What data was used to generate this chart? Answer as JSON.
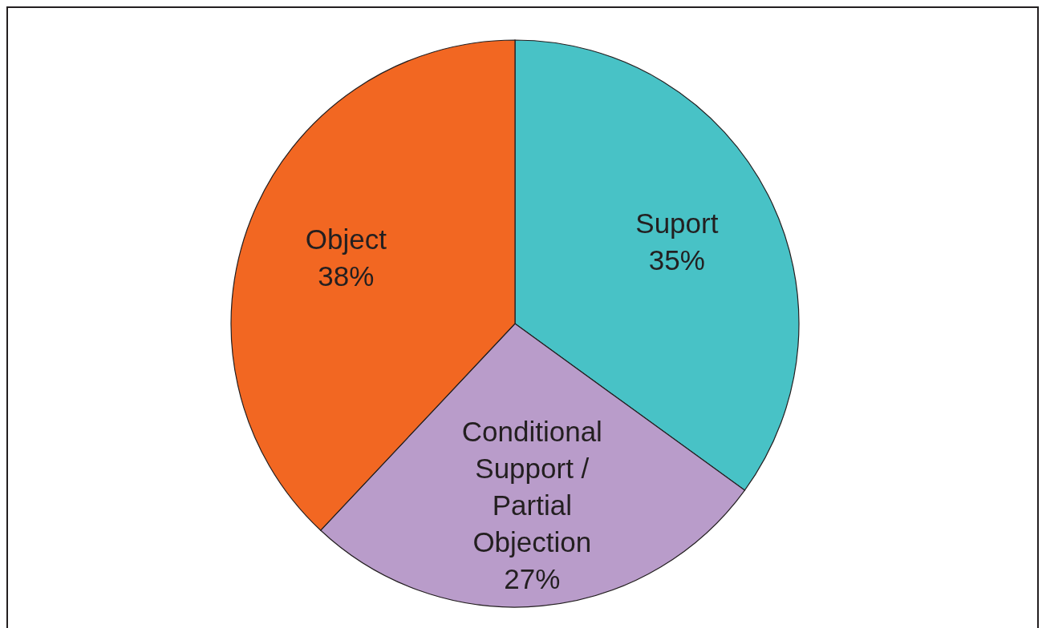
{
  "chart_data": {
    "type": "pie",
    "categories": [
      "Suport",
      "Conditional Support / Partial Objection",
      "Object"
    ],
    "values": [
      35,
      27,
      38
    ],
    "value_labels": [
      "35%",
      "27%",
      "38%"
    ],
    "colors": [
      "#48c2c6",
      "#b99cca",
      "#f26722"
    ]
  }
}
